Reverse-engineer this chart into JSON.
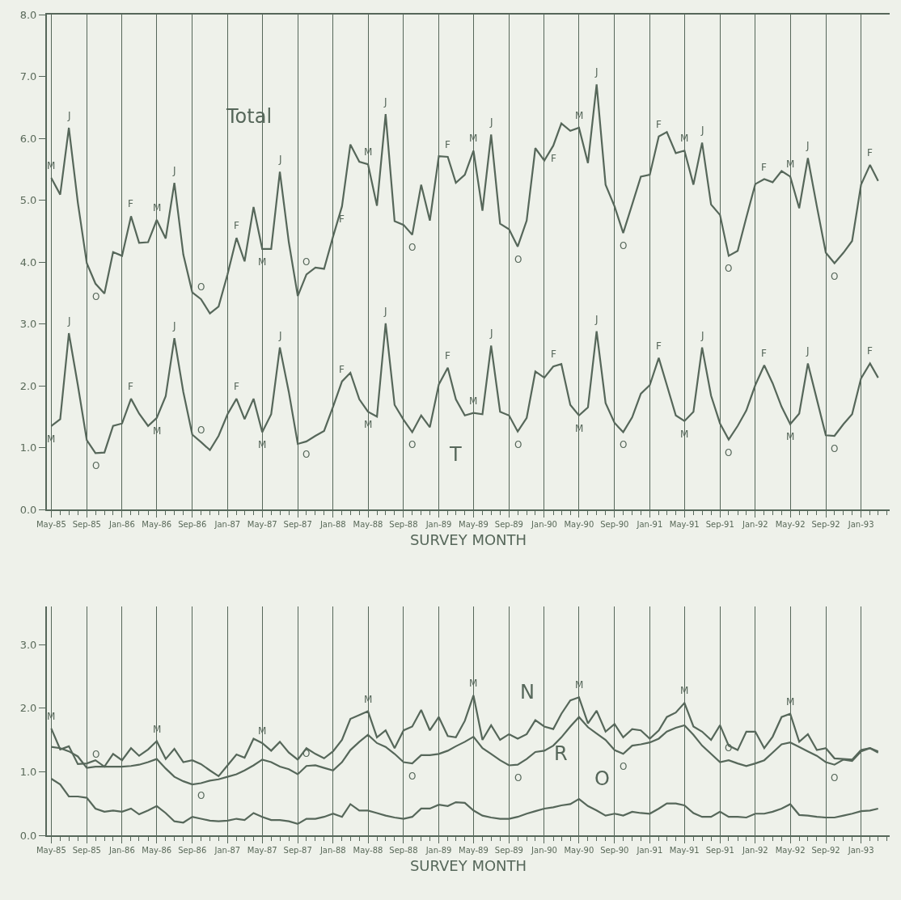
{
  "chart_data": [
    {
      "type": "line",
      "xlabel": "SURVEY MONTH",
      "grid": "x",
      "x": [
        "1985-05",
        "1985-06",
        "1985-07",
        "1985-08",
        "1985-09",
        "1985-10",
        "1985-11",
        "1985-12",
        "1986-01",
        "1986-02",
        "1986-03",
        "1986-04",
        "1986-05",
        "1986-06",
        "1986-07",
        "1986-08",
        "1986-09",
        "1986-10",
        "1986-11",
        "1986-12",
        "1987-01",
        "1987-02",
        "1987-03",
        "1987-04",
        "1987-05",
        "1987-06",
        "1987-07",
        "1987-08",
        "1987-09",
        "1987-10",
        "1987-11",
        "1987-12",
        "1988-01",
        "1988-02",
        "1988-03",
        "1988-04",
        "1988-05",
        "1988-06",
        "1988-07",
        "1988-08",
        "1988-09",
        "1988-10",
        "1988-11",
        "1988-12",
        "1989-01",
        "1989-02",
        "1989-03",
        "1989-04",
        "1989-05",
        "1989-06",
        "1989-07",
        "1989-08",
        "1989-09",
        "1989-10",
        "1989-11",
        "1989-12",
        "1990-01",
        "1990-02",
        "1990-03",
        "1990-04",
        "1990-05",
        "1990-06",
        "1990-07",
        "1990-08",
        "1990-09",
        "1990-10",
        "1990-11",
        "1990-12",
        "1991-01",
        "1991-02",
        "1991-03",
        "1991-04",
        "1991-05",
        "1991-06",
        "1991-07",
        "1991-08",
        "1991-09",
        "1991-10",
        "1991-11",
        "1991-12",
        "1992-01",
        "1992-02",
        "1992-03",
        "1992-04",
        "1992-05",
        "1992-06",
        "1992-07",
        "1992-08",
        "1992-09",
        "1992-10",
        "1992-11",
        "1992-12",
        "1993-01",
        "1993-02",
        "1993-03"
      ],
      "xlim": [
        "1985-04-16",
        "1993-04-10"
      ],
      "xticks": [
        {
          "value": "1985-05",
          "label": "May-85"
        },
        {
          "value": "1985-09",
          "label": "Sep-85"
        },
        {
          "value": "1986-01",
          "label": "Jan-86"
        },
        {
          "value": "1986-05",
          "label": "May-86"
        },
        {
          "value": "1986-09",
          "label": "Sep-86"
        },
        {
          "value": "1987-01",
          "label": "Jan-87"
        },
        {
          "value": "1987-05",
          "label": "May-87"
        },
        {
          "value": "1987-09",
          "label": "Sep-87"
        },
        {
          "value": "1988-01",
          "label": "Jan-88"
        },
        {
          "value": "1988-05",
          "label": "May-88"
        },
        {
          "value": "1988-09",
          "label": "Sep-88"
        },
        {
          "value": "1989-01",
          "label": "Jan-89"
        },
        {
          "value": "1989-05",
          "label": "May-89"
        },
        {
          "value": "1989-09",
          "label": "Sep-89"
        },
        {
          "value": "1990-01",
          "label": "Jan-90"
        },
        {
          "value": "1990-05",
          "label": "May-90"
        },
        {
          "value": "1990-09",
          "label": "Sep-90"
        },
        {
          "value": "1991-01",
          "label": "Jan-91"
        },
        {
          "value": "1991-05",
          "label": "May-91"
        },
        {
          "value": "1991-09",
          "label": "Sep-91"
        },
        {
          "value": "1992-01",
          "label": "Jan-92"
        },
        {
          "value": "1992-05",
          "label": "May-92"
        },
        {
          "value": "1992-09",
          "label": "Sep-92"
        },
        {
          "value": "1993-01",
          "label": "Jan-93"
        }
      ],
      "ylim": [
        0,
        8
      ],
      "yticks": [
        {
          "value": 0,
          "label": "0.0"
        },
        {
          "value": 1,
          "label": "1.0"
        },
        {
          "value": 2,
          "label": "2.0"
        },
        {
          "value": 3,
          "label": "3.0"
        },
        {
          "value": 4,
          "label": "4.0"
        },
        {
          "value": 5,
          "label": "5.0"
        },
        {
          "value": 6,
          "label": "6.0"
        },
        {
          "value": 7,
          "label": "7.0"
        },
        {
          "value": 8,
          "label": "8.0"
        }
      ],
      "series": [
        {
          "color": "#56675a",
          "values": [
            5.36,
            5.09,
            6.17,
            4.96,
            3.98,
            3.65,
            3.49,
            4.16,
            4.1,
            4.74,
            4.31,
            4.32,
            4.68,
            4.38,
            5.28,
            4.12,
            3.51,
            3.4,
            3.17,
            3.28,
            3.8,
            4.39,
            4.01,
            4.89,
            4.21,
            4.21,
            5.46,
            4.32,
            3.45,
            3.8,
            3.91,
            3.89,
            4.41,
            4.9,
            5.9,
            5.62,
            5.58,
            4.91,
            6.39,
            4.66,
            4.6,
            4.44,
            5.25,
            4.67,
            5.71,
            5.7,
            5.28,
            5.41,
            5.8,
            4.83,
            6.06,
            4.62,
            4.53,
            4.25,
            4.67,
            5.84,
            5.64,
            5.88,
            6.24,
            6.12,
            6.17,
            5.6,
            6.87,
            5.25,
            4.9,
            4.47,
            4.93,
            5.38,
            5.41,
            6.03,
            6.1,
            5.76,
            5.8,
            5.25,
            5.93,
            4.93,
            4.76,
            4.1,
            4.18,
            4.72,
            5.26,
            5.34,
            5.29,
            5.47,
            5.38,
            4.87,
            5.68,
            4.9,
            4.15,
            3.98,
            4.15,
            4.34,
            5.25,
            5.57,
            5.31
          ],
          "value_labels": [
            "M",
            null,
            "J",
            null,
            null,
            "O",
            null,
            null,
            null,
            "F",
            null,
            null,
            "M",
            null,
            "J",
            null,
            null,
            "O",
            null,
            null,
            null,
            "F",
            null,
            null,
            "M",
            null,
            "J",
            null,
            null,
            "O",
            null,
            null,
            null,
            "F",
            null,
            null,
            "M",
            null,
            "J",
            null,
            null,
            "O",
            null,
            null,
            null,
            "F",
            null,
            null,
            "M",
            null,
            "J",
            null,
            null,
            "O",
            null,
            null,
            null,
            "F",
            null,
            null,
            "M",
            null,
            "J",
            null,
            null,
            "O",
            null,
            null,
            null,
            "F",
            null,
            null,
            "M",
            null,
            "J",
            null,
            null,
            "O",
            null,
            null,
            null,
            "F",
            null,
            null,
            "M",
            null,
            "J",
            null,
            null,
            "O",
            null,
            null,
            null,
            "F",
            null
          ]
        },
        {
          "color": "#56675a",
          "values": [
            1.35,
            1.46,
            2.85,
            2.01,
            1.12,
            0.91,
            0.92,
            1.35,
            1.39,
            1.79,
            1.55,
            1.35,
            1.48,
            1.83,
            2.77,
            1.9,
            1.21,
            1.09,
            0.96,
            1.19,
            1.54,
            1.79,
            1.46,
            1.79,
            1.25,
            1.54,
            2.62,
            1.9,
            1.06,
            1.1,
            1.19,
            1.27,
            1.66,
            2.07,
            2.21,
            1.78,
            1.58,
            1.5,
            3.01,
            1.69,
            1.45,
            1.25,
            1.52,
            1.33,
            2.02,
            2.29,
            1.78,
            1.52,
            1.56,
            1.54,
            2.65,
            1.58,
            1.52,
            1.26,
            1.48,
            2.23,
            2.13,
            2.31,
            2.35,
            1.69,
            1.52,
            1.65,
            2.88,
            1.72,
            1.4,
            1.25,
            1.49,
            1.87,
            2.01,
            2.45,
            2.01,
            1.52,
            1.43,
            1.58,
            2.62,
            1.84,
            1.39,
            1.13,
            1.35,
            1.6,
            2.01,
            2.33,
            2.04,
            1.66,
            1.38,
            1.55,
            2.36,
            1.78,
            1.2,
            1.19,
            1.38,
            1.54,
            2.12,
            2.36,
            2.13
          ],
          "value_labels": [
            "M",
            null,
            "J",
            null,
            null,
            "O",
            null,
            null,
            null,
            "F",
            null,
            null,
            "M",
            null,
            "J",
            null,
            null,
            "O",
            null,
            null,
            null,
            "F",
            null,
            null,
            "M",
            null,
            "J",
            null,
            null,
            "O",
            null,
            null,
            null,
            "F",
            null,
            null,
            "M",
            null,
            "J",
            null,
            null,
            "O",
            null,
            null,
            null,
            "F",
            null,
            null,
            "M",
            null,
            "J",
            null,
            null,
            "O",
            null,
            null,
            null,
            "F",
            null,
            null,
            "M",
            null,
            "J",
            null,
            null,
            "O",
            null,
            null,
            null,
            "F",
            null,
            null,
            "M",
            null,
            "J",
            null,
            null,
            "O",
            null,
            null,
            null,
            "F",
            null,
            null,
            "M",
            null,
            "J",
            null,
            null,
            "O",
            null,
            null,
            null,
            "F",
            null
          ]
        }
      ],
      "annotations": [
        "Total",
        "T"
      ]
    },
    {
      "type": "line",
      "xlabel": "SURVEY MONTH",
      "grid": "x",
      "x": [
        "1985-05",
        "1985-06",
        "1985-07",
        "1985-08",
        "1985-09",
        "1985-10",
        "1985-11",
        "1985-12",
        "1986-01",
        "1986-02",
        "1986-03",
        "1986-04",
        "1986-05",
        "1986-06",
        "1986-07",
        "1986-08",
        "1986-09",
        "1986-10",
        "1986-11",
        "1986-12",
        "1987-01",
        "1987-02",
        "1987-03",
        "1987-04",
        "1987-05",
        "1987-06",
        "1987-07",
        "1987-08",
        "1987-09",
        "1987-10",
        "1987-11",
        "1987-12",
        "1988-01",
        "1988-02",
        "1988-03",
        "1988-04",
        "1988-05",
        "1988-06",
        "1988-07",
        "1988-08",
        "1988-09",
        "1988-10",
        "1988-11",
        "1988-12",
        "1989-01",
        "1989-02",
        "1989-03",
        "1989-04",
        "1989-05",
        "1989-06",
        "1989-07",
        "1989-08",
        "1989-09",
        "1989-10",
        "1989-11",
        "1989-12",
        "1990-01",
        "1990-02",
        "1990-03",
        "1990-04",
        "1990-05",
        "1990-06",
        "1990-07",
        "1990-08",
        "1990-09",
        "1990-10",
        "1990-11",
        "1990-12",
        "1991-01",
        "1991-02",
        "1991-03",
        "1991-04",
        "1991-05",
        "1991-06",
        "1991-07",
        "1991-08",
        "1991-09",
        "1991-10",
        "1991-11",
        "1991-12",
        "1992-01",
        "1992-02",
        "1992-03",
        "1992-04",
        "1992-05",
        "1992-06",
        "1992-07",
        "1992-08",
        "1992-09",
        "1992-10",
        "1992-11",
        "1992-12",
        "1993-01",
        "1993-02",
        "1993-03"
      ],
      "xlim": [
        "1985-04-16",
        "1993-04-10"
      ],
      "xticks": [
        {
          "value": "1985-05",
          "label": "May-85"
        },
        {
          "value": "1985-09",
          "label": "Sep-85"
        },
        {
          "value": "1986-01",
          "label": "Jan-86"
        },
        {
          "value": "1986-05",
          "label": "May-86"
        },
        {
          "value": "1986-09",
          "label": "Sep-86"
        },
        {
          "value": "1987-01",
          "label": "Jan-87"
        },
        {
          "value": "1987-05",
          "label": "May-87"
        },
        {
          "value": "1987-09",
          "label": "Sep-87"
        },
        {
          "value": "1988-01",
          "label": "Jan-88"
        },
        {
          "value": "1988-05",
          "label": "May-88"
        },
        {
          "value": "1988-09",
          "label": "Sep-88"
        },
        {
          "value": "1989-01",
          "label": "Jan-89"
        },
        {
          "value": "1989-05",
          "label": "May-89"
        },
        {
          "value": "1989-09",
          "label": "Sep-89"
        },
        {
          "value": "1990-01",
          "label": "Jan-90"
        },
        {
          "value": "1990-05",
          "label": "May-90"
        },
        {
          "value": "1990-09",
          "label": "Sep-90"
        },
        {
          "value": "1991-01",
          "label": "Jan-91"
        },
        {
          "value": "1991-05",
          "label": "May-91"
        },
        {
          "value": "1991-09",
          "label": "Sep-91"
        },
        {
          "value": "1992-01",
          "label": "Jan-92"
        },
        {
          "value": "1992-05",
          "label": "May-92"
        },
        {
          "value": "1992-09",
          "label": "Sep-92"
        },
        {
          "value": "1993-01",
          "label": "Jan-93"
        }
      ],
      "ylim": [
        0,
        3.6
      ],
      "yticks": [
        {
          "value": 0,
          "label": "0.0"
        },
        {
          "value": 1,
          "label": "1.0"
        },
        {
          "value": 2,
          "label": "2.0"
        },
        {
          "value": 3,
          "label": "3.0"
        }
      ],
      "series": [
        {
          "color": "#56675a",
          "values": [
            1.68,
            1.35,
            1.4,
            1.12,
            1.13,
            1.18,
            1.08,
            1.28,
            1.18,
            1.37,
            1.25,
            1.35,
            1.48,
            1.2,
            1.36,
            1.15,
            1.18,
            1.12,
            1.02,
            0.93,
            1.1,
            1.27,
            1.22,
            1.52,
            1.45,
            1.33,
            1.47,
            1.3,
            1.19,
            1.37,
            1.28,
            1.21,
            1.32,
            1.5,
            1.83,
            1.89,
            1.95,
            1.54,
            1.65,
            1.37,
            1.65,
            1.71,
            1.97,
            1.65,
            1.86,
            1.56,
            1.54,
            1.8,
            2.2,
            1.5,
            1.73,
            1.5,
            1.59,
            1.52,
            1.59,
            1.81,
            1.71,
            1.67,
            1.91,
            2.12,
            2.17,
            1.76,
            1.96,
            1.63,
            1.75,
            1.54,
            1.67,
            1.65,
            1.52,
            1.65,
            1.86,
            1.93,
            2.08,
            1.71,
            1.63,
            1.5,
            1.73,
            1.41,
            1.34,
            1.63,
            1.63,
            1.37,
            1.55,
            1.86,
            1.91,
            1.47,
            1.59,
            1.34,
            1.37,
            1.21,
            1.2,
            1.19,
            1.34,
            1.37,
            1.32
          ],
          "value_labels": [
            "M",
            null,
            null,
            null,
            null,
            null,
            null,
            null,
            null,
            null,
            null,
            null,
            "M",
            null,
            null,
            null,
            null,
            null,
            null,
            null,
            null,
            null,
            null,
            null,
            "M",
            null,
            null,
            null,
            null,
            null,
            null,
            null,
            null,
            null,
            null,
            null,
            "M",
            null,
            null,
            null,
            null,
            null,
            null,
            null,
            null,
            null,
            null,
            null,
            "M",
            null,
            null,
            null,
            null,
            null,
            null,
            null,
            null,
            null,
            null,
            null,
            "M",
            null,
            null,
            null,
            null,
            null,
            null,
            null,
            null,
            null,
            null,
            null,
            "M",
            null,
            null,
            null,
            null,
            null,
            null,
            null,
            null,
            null,
            null,
            null,
            "M",
            null,
            null,
            null,
            null,
            null,
            null,
            null,
            null,
            null,
            null
          ]
        },
        {
          "color": "#56675a",
          "values": [
            1.39,
            1.37,
            1.32,
            1.24,
            1.06,
            1.08,
            1.08,
            1.08,
            1.08,
            1.09,
            1.11,
            1.15,
            1.2,
            1.05,
            0.92,
            0.85,
            0.8,
            0.82,
            0.86,
            0.88,
            0.92,
            0.96,
            1.02,
            1.1,
            1.19,
            1.15,
            1.08,
            1.04,
            0.96,
            1.09,
            1.1,
            1.06,
            1.02,
            1.15,
            1.34,
            1.47,
            1.58,
            1.45,
            1.39,
            1.28,
            1.15,
            1.13,
            1.26,
            1.26,
            1.28,
            1.33,
            1.4,
            1.47,
            1.55,
            1.37,
            1.28,
            1.18,
            1.1,
            1.11,
            1.2,
            1.31,
            1.33,
            1.41,
            1.54,
            1.71,
            1.86,
            1.7,
            1.6,
            1.5,
            1.34,
            1.28,
            1.41,
            1.43,
            1.46,
            1.52,
            1.63,
            1.69,
            1.73,
            1.58,
            1.41,
            1.28,
            1.15,
            1.18,
            1.13,
            1.09,
            1.13,
            1.18,
            1.3,
            1.43,
            1.46,
            1.39,
            1.32,
            1.25,
            1.15,
            1.11,
            1.19,
            1.17,
            1.32,
            1.37,
            1.3
          ],
          "value_labels": [
            null,
            null,
            null,
            null,
            null,
            "O",
            null,
            null,
            null,
            null,
            null,
            null,
            null,
            null,
            null,
            null,
            null,
            "O",
            null,
            null,
            null,
            null,
            null,
            null,
            null,
            null,
            null,
            null,
            null,
            "O",
            null,
            null,
            null,
            null,
            null,
            null,
            null,
            null,
            null,
            null,
            null,
            "O",
            null,
            null,
            null,
            null,
            null,
            null,
            null,
            null,
            null,
            null,
            null,
            "O",
            null,
            null,
            null,
            null,
            null,
            null,
            null,
            null,
            null,
            null,
            null,
            "O",
            null,
            null,
            null,
            null,
            null,
            null,
            null,
            null,
            null,
            null,
            null,
            "O",
            null,
            null,
            null,
            null,
            null,
            null,
            null,
            null,
            null,
            null,
            null,
            "O",
            null,
            null,
            null,
            null,
            null
          ]
        },
        {
          "color": "#56675a",
          "values": [
            0.89,
            0.8,
            0.61,
            0.61,
            0.59,
            0.42,
            0.37,
            0.39,
            0.37,
            0.42,
            0.33,
            0.39,
            0.46,
            0.35,
            0.22,
            0.2,
            0.29,
            0.26,
            0.23,
            0.22,
            0.23,
            0.26,
            0.24,
            0.35,
            0.29,
            0.24,
            0.24,
            0.22,
            0.18,
            0.26,
            0.26,
            0.29,
            0.34,
            0.29,
            0.49,
            0.39,
            0.39,
            0.35,
            0.31,
            0.28,
            0.26,
            0.29,
            0.42,
            0.42,
            0.48,
            0.46,
            0.52,
            0.51,
            0.39,
            0.31,
            0.28,
            0.26,
            0.26,
            0.29,
            0.34,
            0.38,
            0.42,
            0.44,
            0.47,
            0.49,
            0.57,
            0.46,
            0.39,
            0.31,
            0.34,
            0.31,
            0.37,
            0.35,
            0.34,
            0.42,
            0.5,
            0.5,
            0.47,
            0.35,
            0.29,
            0.29,
            0.37,
            0.29,
            0.29,
            0.28,
            0.34,
            0.34,
            0.37,
            0.42,
            0.49,
            0.32,
            0.31,
            0.29,
            0.28,
            0.28,
            0.31,
            0.34,
            0.38,
            0.39,
            0.42
          ]
        }
      ],
      "annotations": [
        "N",
        "R",
        "O"
      ]
    }
  ]
}
